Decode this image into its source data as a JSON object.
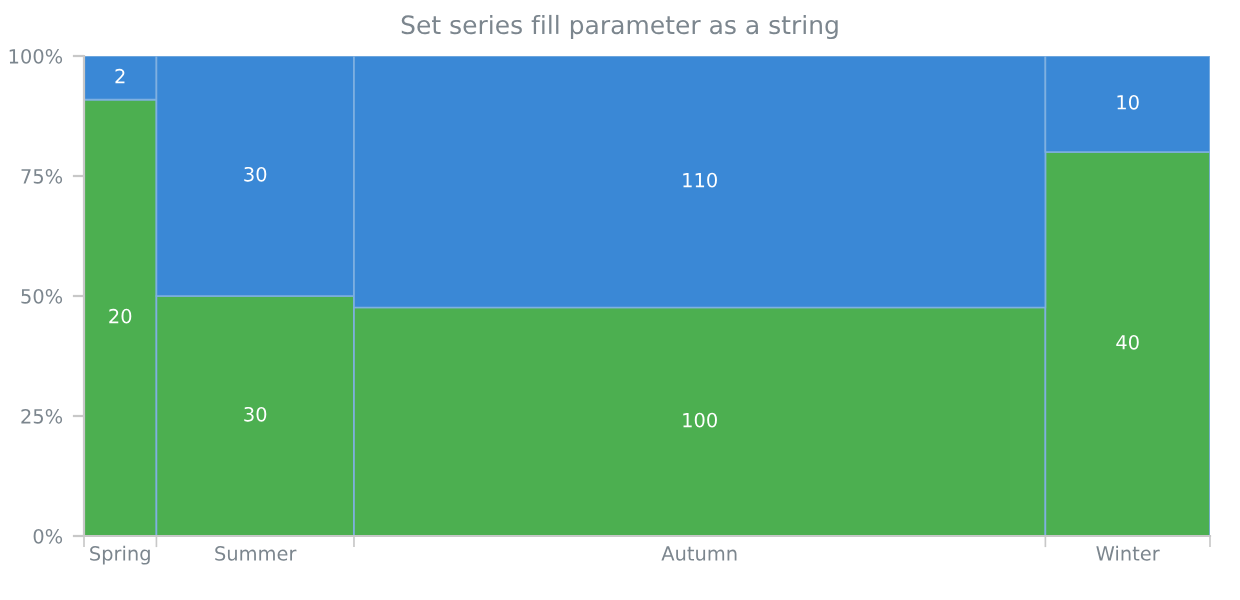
{
  "chart_data": {
    "type": "bar",
    "title": "Set series fill parameter as a string",
    "categories": [
      "Spring",
      "Summer",
      "Autumn",
      "Winter"
    ],
    "series": [
      {
        "color": "#4caf50",
        "values": [
          90.9,
          50,
          47.6,
          80
        ]
      },
      {
        "color": "#3a88d6",
        "values": [
          9.1,
          50,
          52.4,
          20
        ]
      }
    ],
    "stacked": true,
    "annotations": [
      "20",
      "30",
      "100",
      "40",
      "2",
      "30",
      "110",
      "10"
    ],
    "ylim": [
      0,
      100
    ],
    "yticks": [
      {
        "value": 0,
        "label": "0%"
      },
      {
        "value": 25,
        "label": "25%"
      },
      {
        "value": 50,
        "label": "50%"
      },
      {
        "value": 75,
        "label": "75%"
      },
      {
        "value": 100,
        "label": "100%"
      }
    ]
  }
}
